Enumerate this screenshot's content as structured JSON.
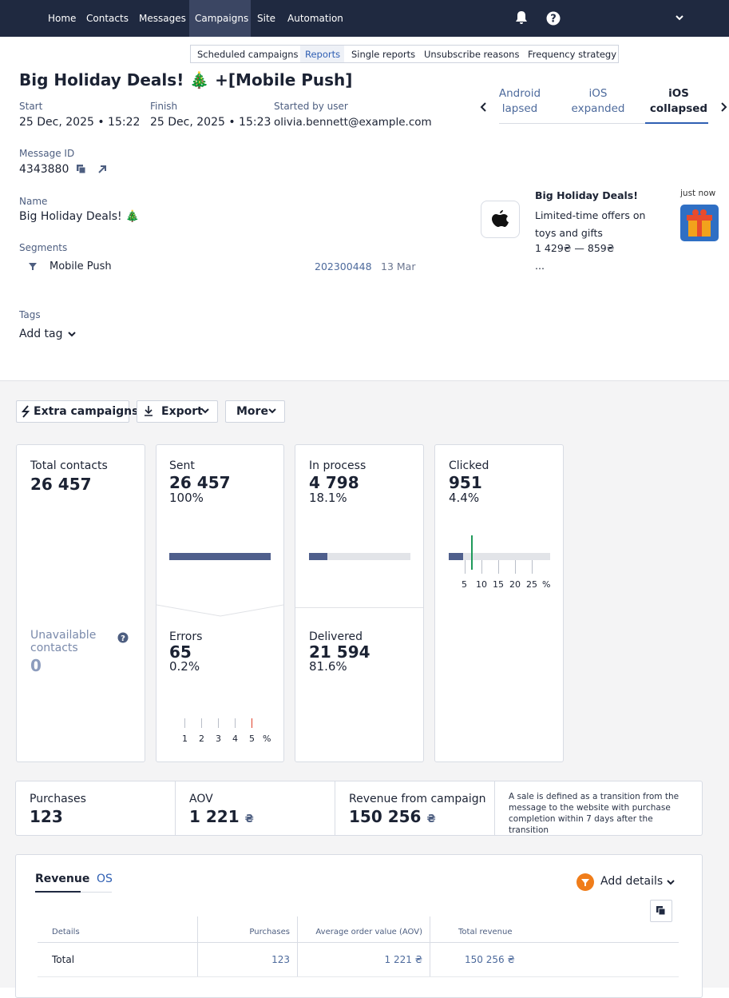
{
  "nav": {
    "items": [
      "Home",
      "Contacts",
      "Messages",
      "Campaigns",
      "Site",
      "Automation"
    ]
  },
  "subnav": {
    "items": [
      "Scheduled campaigns",
      "Reports",
      "Single reports",
      "Unsubscribe reasons",
      "Frequency strategy"
    ]
  },
  "header": {
    "title": "Big Holiday Deals! 🎄 +[Mobile Push]"
  },
  "meta": {
    "start": {
      "label": "Start",
      "value": "25 Dec, 2025 • 15:22"
    },
    "finish": {
      "label": "Finish",
      "value": "25 Dec, 2025 • 15:23"
    },
    "user": {
      "label": "Started by user",
      "value": "olivia.bennett@example.com"
    }
  },
  "message_id": {
    "label": "Message ID",
    "value": "4343880"
  },
  "name": {
    "label": "Name",
    "value": "Big Holiday Deals! 🎄"
  },
  "segments": {
    "label": "Segments",
    "rows": [
      {
        "name": "Mobile Push",
        "id": "202300448",
        "date": "13 Mar"
      }
    ]
  },
  "tags": {
    "label": "Tags",
    "action": "Add tag"
  },
  "preview": {
    "tabs": [
      "Android lapsed",
      "iOS expanded",
      "iOS collapsed"
    ],
    "notification": {
      "title": "Big Holiday Deals!",
      "time": "just now",
      "body": "Limited-time offers on toys and gifts",
      "price": "1 429₴ — 859₴",
      "more": "..."
    }
  },
  "toolbar": {
    "buttons": [
      "Extra campaigns",
      "Export",
      "More"
    ]
  },
  "cards": {
    "total": {
      "label": "Total contacts",
      "value": "26 457"
    },
    "unavailable": {
      "label": "Unavailable contacts",
      "value": "0"
    },
    "sent": {
      "label": "Sent",
      "value": "26 457",
      "percent": "100%"
    },
    "errors": {
      "label": "Errors",
      "value": "65",
      "percent": "0.2%",
      "scale": [
        1,
        2,
        3,
        4,
        5,
        "%"
      ]
    },
    "in_process": {
      "label": "In process",
      "value": "4 798",
      "percent": "18.1%"
    },
    "delivered": {
      "label": "Delivered",
      "value": "21 594",
      "percent": "81.6%"
    },
    "clicked": {
      "label": "Clicked",
      "value": "951",
      "percent": "4.4%",
      "scale": [
        5,
        10,
        15,
        20,
        25,
        "%"
      ]
    }
  },
  "metrics": {
    "purchases": {
      "label": "Purchases",
      "value": "123"
    },
    "aov": {
      "label": "AOV",
      "value": "1 221",
      "currency": "₴"
    },
    "revenue": {
      "label": "Revenue from campaign",
      "value": "150 256",
      "currency": "₴"
    },
    "note": "A sale is defined as a transition from the message to the website with purchase completion within 7 days after the transition"
  },
  "report": {
    "tabs": [
      "Revenue",
      "OS"
    ],
    "add_details": "Add details",
    "table": {
      "headers": [
        "Details",
        "Purchases",
        "Average order value (AOV)",
        "Total revenue"
      ],
      "rows": [
        [
          "Total",
          "123",
          "1 221 ₴",
          "150 256 ₴"
        ]
      ]
    }
  }
}
